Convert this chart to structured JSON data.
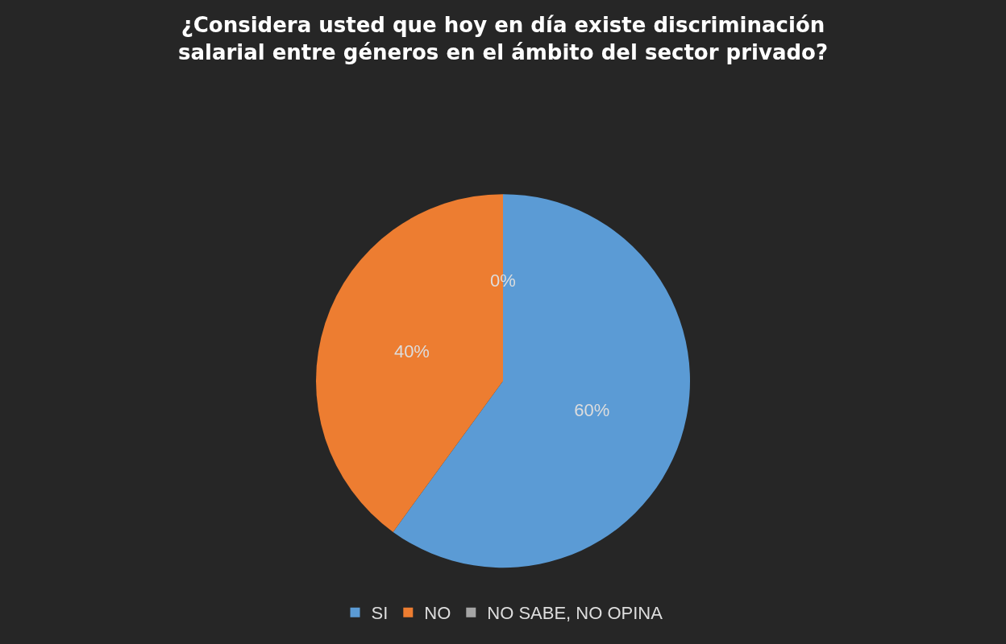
{
  "chart_data": {
    "type": "pie",
    "title": "¿Considera usted que hoy en día existe discriminación salarial entre géneros en el ámbito del sector privado?",
    "categories": [
      "SI",
      "NO",
      "NO SABE, NO OPINA"
    ],
    "values": [
      60,
      40,
      0
    ],
    "colors": [
      "#5b9bd5",
      "#ed7d31",
      "#a5a5a5"
    ],
    "value_labels": [
      "60%",
      "40%",
      "0%"
    ],
    "legend": "bottom"
  }
}
